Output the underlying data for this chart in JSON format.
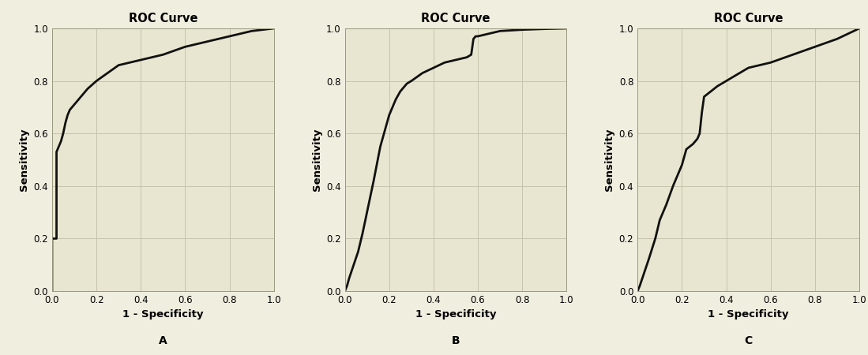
{
  "title": "ROC Curve",
  "xlabel": "1 - Specificity",
  "ylabel": "Sensitivity",
  "bg_color": "#e8e6d0",
  "outer_bg": "#f0eedf",
  "grid_color": "#c5c3aa",
  "line_color": "#111111",
  "line_width": 2.0,
  "xlim": [
    0.0,
    1.0
  ],
  "ylim": [
    0.0,
    1.0
  ],
  "xticks": [
    0.0,
    0.2,
    0.4,
    0.6,
    0.8,
    1.0
  ],
  "yticks": [
    0.0,
    0.2,
    0.4,
    0.6,
    0.8,
    1.0
  ],
  "labels": [
    "A",
    "B",
    "C"
  ],
  "curves": [
    {
      "x": [
        0.0,
        0.0,
        0.0,
        0.01,
        0.02,
        0.02,
        0.02,
        0.03,
        0.04,
        0.05,
        0.06,
        0.07,
        0.08,
        0.1,
        0.13,
        0.16,
        0.2,
        0.25,
        0.3,
        0.4,
        0.5,
        0.6,
        0.7,
        0.8,
        0.9,
        1.0
      ],
      "y": [
        0.0,
        0.19,
        0.2,
        0.2,
        0.2,
        0.52,
        0.53,
        0.55,
        0.57,
        0.6,
        0.64,
        0.67,
        0.69,
        0.71,
        0.74,
        0.77,
        0.8,
        0.83,
        0.86,
        0.88,
        0.9,
        0.93,
        0.95,
        0.97,
        0.99,
        1.0
      ]
    },
    {
      "x": [
        0.0,
        0.01,
        0.02,
        0.04,
        0.06,
        0.08,
        0.1,
        0.13,
        0.16,
        0.2,
        0.23,
        0.25,
        0.27,
        0.28,
        0.3,
        0.35,
        0.4,
        0.45,
        0.5,
        0.55,
        0.57,
        0.58,
        0.59,
        0.6,
        0.65,
        0.7,
        0.8,
        0.9,
        1.0
      ],
      "y": [
        0.0,
        0.02,
        0.05,
        0.1,
        0.15,
        0.22,
        0.3,
        0.42,
        0.55,
        0.67,
        0.73,
        0.76,
        0.78,
        0.79,
        0.8,
        0.83,
        0.85,
        0.87,
        0.88,
        0.89,
        0.9,
        0.96,
        0.97,
        0.97,
        0.98,
        0.99,
        0.995,
        0.998,
        1.0
      ]
    },
    {
      "x": [
        0.0,
        0.01,
        0.03,
        0.05,
        0.08,
        0.1,
        0.13,
        0.16,
        0.2,
        0.22,
        0.25,
        0.27,
        0.28,
        0.29,
        0.3,
        0.33,
        0.36,
        0.4,
        0.5,
        0.6,
        0.7,
        0.8,
        0.9,
        1.0
      ],
      "y": [
        0.0,
        0.02,
        0.07,
        0.12,
        0.2,
        0.27,
        0.33,
        0.4,
        0.48,
        0.54,
        0.56,
        0.58,
        0.6,
        0.68,
        0.74,
        0.76,
        0.78,
        0.8,
        0.85,
        0.87,
        0.9,
        0.93,
        0.96,
        1.0
      ]
    }
  ]
}
